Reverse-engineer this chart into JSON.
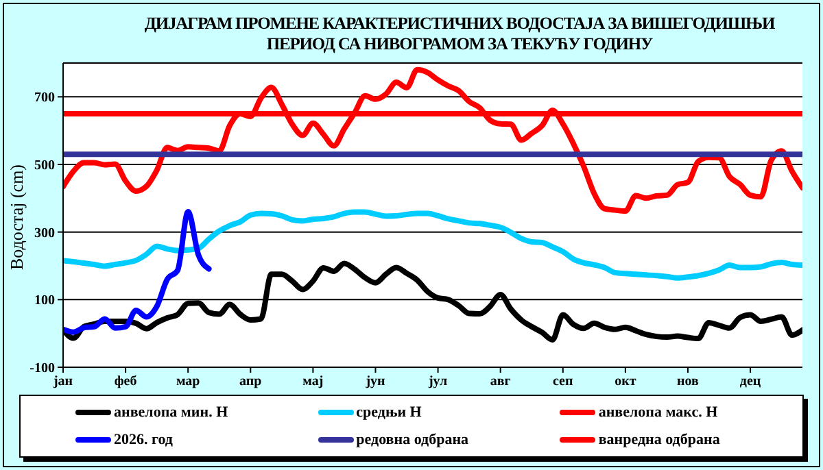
{
  "chart_data": {
    "type": "line",
    "title": "ДИЈАГРАМ ПРОМЕНЕ КАРАКТЕРИСТИЧНИХ ВОДОСТАЈА ЗА ВИШЕГОДИШЊИ ПЕРИОД СА НИВОГРАМОМ ЗА ТЕКУЋУ ГОДИНУ",
    "ylabel": "Водостај (cm)",
    "categories": [
      "јан",
      null,
      null,
      null,
      null,
      null,
      "феб",
      null,
      null,
      null,
      null,
      null,
      "мар",
      null,
      null,
      null,
      null,
      null,
      "апр",
      null,
      null,
      null,
      null,
      null,
      "мај",
      null,
      null,
      null,
      null,
      null,
      "јун",
      null,
      null,
      null,
      null,
      null,
      "јул",
      null,
      null,
      null,
      null,
      null,
      "авг",
      null,
      null,
      null,
      null,
      null,
      "сеп",
      null,
      null,
      null,
      null,
      null,
      "окт",
      null,
      null,
      null,
      null,
      null,
      "нов",
      null,
      null,
      null,
      null,
      null,
      "дец",
      null,
      null,
      null,
      null,
      null
    ],
    "ylim": [
      -100,
      800
    ],
    "yticks": [
      -100,
      100,
      300,
      500,
      700
    ],
    "grid": "y",
    "legend": "bottom",
    "marker": "none",
    "line_style": "solid",
    "series": [
      {
        "name": "анвелопа мин. Н",
        "color": "#000000",
        "values": [
          10,
          -14,
          20,
          28,
          36,
          36,
          36,
          30,
          14,
          32,
          46,
          56,
          89,
          90,
          62,
          57,
          86,
          57,
          40,
          43,
          175,
          175,
          155,
          130,
          155,
          194,
          184,
          207,
          190,
          165,
          150,
          175,
          195,
          178,
          158,
          124,
          105,
          100,
          82,
          59,
          58,
          80,
          115,
          72,
          40,
          20,
          3,
          -19,
          55,
          27,
          15,
          30,
          18,
          12,
          18,
          8,
          -3,
          -9,
          -11,
          -8,
          -12,
          -15,
          32,
          24,
          16,
          47,
          55,
          36,
          42,
          49,
          -5,
          10
        ]
      },
      {
        "name": "средњи Н",
        "color": "#00ccff",
        "values": [
          215,
          212,
          208,
          204,
          199,
          204,
          209,
          216,
          234,
          258,
          250,
          245,
          247,
          252,
          279,
          303,
          319,
          330,
          350,
          355,
          354,
          348,
          336,
          333,
          338,
          340,
          345,
          355,
          359,
          359,
          353,
          347,
          348,
          352,
          355,
          355,
          348,
          339,
          333,
          327,
          325,
          320,
          314,
          299,
          281,
          271,
          269,
          256,
          242,
          220,
          209,
          203,
          195,
          180,
          177,
          175,
          173,
          171,
          168,
          164,
          167,
          171,
          178,
          188,
          202,
          195,
          195,
          197,
          206,
          210,
          204,
          202
        ]
      },
      {
        "name": "анвелопа макс. Н",
        "color": "#ff0000",
        "values": [
          434,
          480,
          505,
          505,
          499,
          501,
          451,
          421,
          435,
          483,
          550,
          541,
          552,
          550,
          548,
          540,
          615,
          650,
          642,
          696,
          728,
          678,
          619,
          586,
          622,
          589,
          555,
          605,
          653,
          703,
          693,
          708,
          743,
          727,
          780,
          772,
          750,
          732,
          718,
          686,
          668,
          631,
          620,
          619,
          572,
          592,
          615,
          660,
          620,
          562,
          494,
          414,
          369,
          365,
          362,
          408,
          400,
          407,
          409,
          440,
          447,
          509,
          521,
          520,
          464,
          441,
          409,
          404,
          512,
          540,
          480,
          431
        ]
      },
      {
        "name": "2026. год",
        "color": "#0000ff",
        "values": [
          12,
          4,
          17,
          20,
          43,
          16,
          20,
          68,
          49,
          80,
          160,
          187,
          360,
          232,
          191,
          null,
          null,
          null,
          null,
          null,
          null,
          null,
          null,
          null,
          null,
          null,
          null,
          null,
          null,
          null,
          null,
          null,
          null,
          null,
          null,
          null,
          null,
          null,
          null,
          null,
          null,
          null,
          null,
          null,
          null,
          null,
          null,
          null,
          null,
          null,
          null,
          null,
          null,
          null,
          null,
          null,
          null,
          null,
          null,
          null,
          null,
          null,
          null,
          null,
          null,
          null,
          null,
          null,
          null,
          null,
          null,
          null
        ]
      },
      {
        "name": "редовна одбрана",
        "color": "#333399",
        "values": [
          530,
          530,
          530,
          530,
          530,
          530,
          530,
          530,
          530,
          530,
          530,
          530,
          530,
          530,
          530,
          530,
          530,
          530,
          530,
          530,
          530,
          530,
          530,
          530,
          530,
          530,
          530,
          530,
          530,
          530,
          530,
          530,
          530,
          530,
          530,
          530,
          530,
          530,
          530,
          530,
          530,
          530,
          530,
          530,
          530,
          530,
          530,
          530,
          530,
          530,
          530,
          530,
          530,
          530,
          530,
          530,
          530,
          530,
          530,
          530,
          530,
          530,
          530,
          530,
          530,
          530,
          530,
          530,
          530,
          530,
          530,
          530
        ]
      },
      {
        "name": "ванредна одбрана",
        "color": "#ff0000",
        "values": [
          650,
          650,
          650,
          650,
          650,
          650,
          650,
          650,
          650,
          650,
          650,
          650,
          650,
          650,
          650,
          650,
          650,
          650,
          650,
          650,
          650,
          650,
          650,
          650,
          650,
          650,
          650,
          650,
          650,
          650,
          650,
          650,
          650,
          650,
          650,
          650,
          650,
          650,
          650,
          650,
          650,
          650,
          650,
          650,
          650,
          650,
          650,
          650,
          650,
          650,
          650,
          650,
          650,
          650,
          650,
          650,
          650,
          650,
          650,
          650,
          650,
          650,
          650,
          650,
          650,
          650,
          650,
          650,
          650,
          650,
          650,
          650
        ]
      }
    ]
  }
}
